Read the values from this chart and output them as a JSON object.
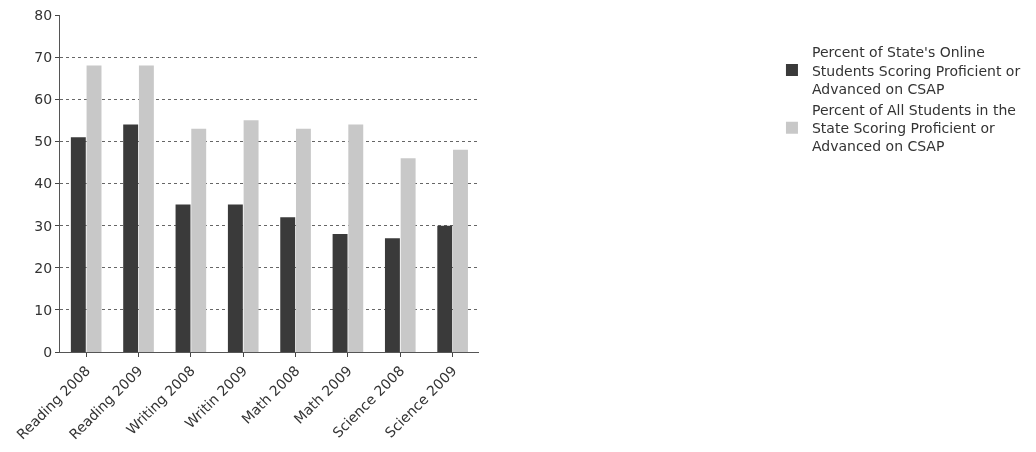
{
  "chart_data": {
    "type": "bar",
    "categories": [
      "Reading 2008",
      "Reading 2009",
      "Writing 2008",
      "Writin 2009",
      "Math 2008",
      "Math 2009",
      "Science 2008",
      "Science 2009"
    ],
    "series": [
      {
        "name": "Percent of State's Online Students Scoring Proficient or Advanced on CSAP",
        "color": "#3a3a3a",
        "values": [
          51,
          54,
          35,
          35,
          32,
          28,
          27,
          30
        ]
      },
      {
        "name": "Percent of All Students in the State Scoring Proficient or Advanced on CSAP",
        "color": "#c8c8c8",
        "values": [
          68,
          68,
          53,
          55,
          53,
          54,
          46,
          48
        ]
      }
    ],
    "ylim": [
      0,
      80
    ],
    "yticks": [
      0,
      10,
      20,
      30,
      40,
      50,
      60,
      70,
      80
    ],
    "grid": "y",
    "legend": "right"
  }
}
